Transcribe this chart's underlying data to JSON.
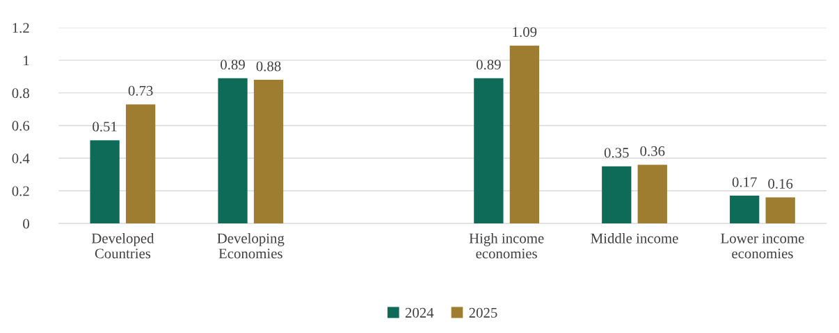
{
  "chart_data": {
    "type": "bar",
    "categories": [
      "Developed\nCountries",
      "Developing\nEconomies",
      null,
      "High income\neconomies",
      "Middle income",
      "Lower income\neconomies"
    ],
    "series": [
      {
        "name": "2024",
        "color": "#0e6b58",
        "values": [
          0.51,
          0.89,
          null,
          0.89,
          0.35,
          0.17
        ]
      },
      {
        "name": "2025",
        "color": "#9e7c30",
        "values": [
          0.73,
          0.88,
          null,
          1.09,
          0.36,
          0.16
        ]
      }
    ],
    "ylim": [
      0,
      1.2
    ],
    "yticks": [
      0,
      0.2,
      0.4,
      0.6,
      0.8,
      1,
      1.2
    ],
    "grid": "y",
    "legend": "bottom",
    "data_labels": true
  }
}
